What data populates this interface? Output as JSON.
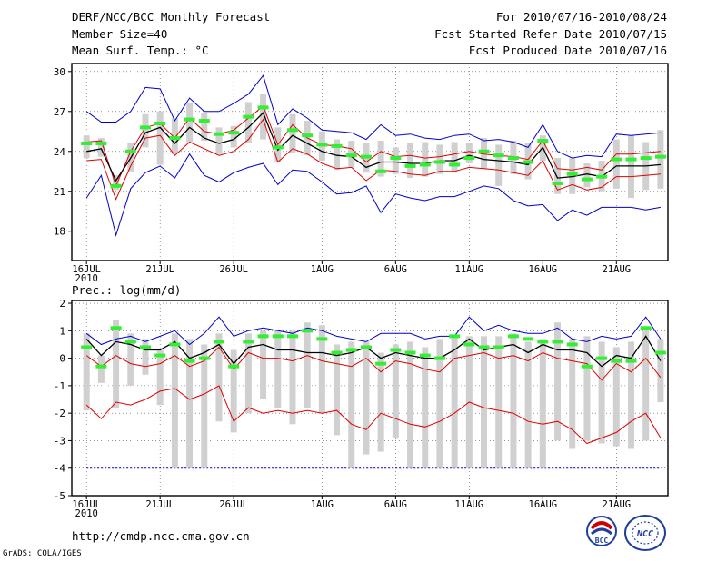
{
  "header": {
    "title": "DERF/NCC/BCC Monthly Forecast",
    "member_size": "Member Size=40",
    "variable": "Mean Surf. Temp.: °C",
    "period": "For 2010/07/16-2010/08/24",
    "started": "Fcst Started Refer Date 2010/07/15",
    "produced": "Fcst Produced Date 2010/07/16"
  },
  "footer": {
    "url": "http://cmdp.ncc.cma.gov.cn",
    "grads": "GrADS: COLA/IGES",
    "logo_bcc": "BCC",
    "logo_ncc": "NCC"
  },
  "colors": {
    "mean": "#000000",
    "inner": "#e00000",
    "outer": "#0000c8",
    "box": "#d0d0d0",
    "obs": "#33ee33"
  },
  "chart_data": [
    {
      "type": "line",
      "title": "Mean Surf. Temp.: °C",
      "x_ticks": [
        {
          "day": 0,
          "label": "16JUL",
          "sub": "2010"
        },
        {
          "day": 5,
          "label": "21JUL"
        },
        {
          "day": 10,
          "label": "26JUL"
        },
        {
          "day": 16,
          "label": "1AUG"
        },
        {
          "day": 21,
          "label": "6AUG"
        },
        {
          "day": 26,
          "label": "11AUG"
        },
        {
          "day": 31,
          "label": "16AUG"
        },
        {
          "day": 36,
          "label": "21AUG"
        }
      ],
      "xlim": [
        -1,
        39.5
      ],
      "ylim": [
        15.8,
        30.6
      ],
      "y_ticks": [
        18,
        21,
        24,
        27,
        30
      ],
      "series": [
        {
          "name": "upper-outer",
          "values": [
            27.0,
            26.2,
            26.2,
            27.0,
            28.8,
            28.7,
            26.3,
            28.0,
            27.0,
            27.0,
            27.6,
            28.3,
            29.7,
            26.0,
            27.2,
            26.5,
            25.6,
            25.5,
            25.4,
            24.9,
            26.0,
            25.2,
            25.3,
            25.0,
            24.9,
            25.2,
            25.3,
            24.8,
            24.9,
            24.7,
            24.3,
            26.0,
            24.0,
            23.5,
            23.7,
            23.6,
            25.3,
            25.2,
            25.3,
            25.4
          ]
        },
        {
          "name": "upper-inner",
          "values": [
            24.7,
            24.8,
            21.4,
            24.0,
            25.8,
            26.1,
            25.0,
            26.5,
            25.5,
            25.3,
            25.6,
            26.5,
            27.4,
            24.5,
            26.0,
            25.0,
            24.5,
            24.4,
            24.2,
            23.2,
            24.0,
            23.6,
            23.7,
            23.5,
            23.6,
            23.8,
            24.0,
            23.8,
            23.7,
            23.6,
            23.4,
            24.8,
            22.7,
            22.6,
            22.8,
            22.6,
            23.8,
            23.8,
            23.9,
            24.0
          ]
        },
        {
          "name": "mean",
          "values": [
            24.0,
            24.2,
            21.8,
            23.5,
            25.4,
            25.8,
            24.6,
            25.8,
            25.0,
            24.6,
            24.9,
            25.8,
            26.9,
            24.1,
            25.2,
            24.6,
            24.0,
            23.7,
            23.6,
            22.8,
            23.2,
            23.2,
            23.1,
            23.1,
            23.3,
            23.3,
            23.7,
            23.4,
            23.3,
            23.2,
            23.0,
            24.3,
            22.0,
            22.1,
            22.3,
            22.1,
            22.9,
            22.9,
            22.9,
            23.0
          ]
        },
        {
          "name": "lower-inner",
          "values": [
            23.3,
            23.4,
            20.4,
            22.9,
            25.0,
            25.2,
            23.7,
            24.7,
            24.2,
            23.7,
            24.0,
            24.9,
            26.4,
            23.2,
            24.2,
            23.8,
            23.1,
            22.7,
            22.8,
            21.8,
            22.6,
            22.5,
            22.3,
            22.2,
            22.5,
            22.5,
            22.8,
            22.7,
            22.6,
            22.4,
            22.2,
            23.3,
            21.1,
            21.5,
            21.1,
            21.3,
            22.1,
            22.1,
            22.2,
            22.3
          ]
        },
        {
          "name": "lower-outer",
          "values": [
            20.5,
            22.2,
            17.7,
            21.2,
            22.4,
            22.9,
            22.0,
            23.8,
            22.2,
            21.7,
            22.4,
            22.8,
            23.1,
            21.5,
            22.6,
            22.5,
            21.7,
            20.8,
            20.9,
            21.4,
            19.4,
            20.8,
            20.5,
            20.3,
            20.6,
            20.6,
            21.0,
            21.4,
            21.2,
            20.3,
            19.9,
            20.0,
            18.8,
            19.6,
            19.2,
            19.8,
            19.8,
            19.8,
            19.6,
            19.8
          ]
        }
      ],
      "boxes": [
        {
          "low": 23.5,
          "high": 25.2
        },
        {
          "low": 23.6,
          "high": 25.0
        },
        {
          "low": 21.1,
          "high": 22.2
        },
        {
          "low": 22.5,
          "high": 24.6
        },
        {
          "low": 24.3,
          "high": 26.8
        },
        {
          "low": 23.0,
          "high": 27.0
        },
        {
          "low": 23.8,
          "high": 26.5
        },
        {
          "low": 24.7,
          "high": 27.6
        },
        {
          "low": 24.8,
          "high": 26.9
        },
        {
          "low": 23.8,
          "high": 25.8
        },
        {
          "low": 24.3,
          "high": 25.9
        },
        {
          "low": 24.6,
          "high": 27.7
        },
        {
          "low": 24.9,
          "high": 28.3
        },
        {
          "low": 23.2,
          "high": 25.8
        },
        {
          "low": 23.9,
          "high": 26.8
        },
        {
          "low": 23.7,
          "high": 26.3
        },
        {
          "low": 23.3,
          "high": 25.5
        },
        {
          "low": 22.6,
          "high": 24.9
        },
        {
          "low": 22.8,
          "high": 24.8
        },
        {
          "low": 22.4,
          "high": 24.6
        },
        {
          "low": 22.1,
          "high": 24.8
        },
        {
          "low": 22.3,
          "high": 24.3
        },
        {
          "low": 22.0,
          "high": 24.6
        },
        {
          "low": 22.1,
          "high": 24.7
        },
        {
          "low": 22.3,
          "high": 24.5
        },
        {
          "low": 22.4,
          "high": 24.7
        },
        {
          "low": 23.1,
          "high": 24.6
        },
        {
          "low": 22.7,
          "high": 25.0
        },
        {
          "low": 21.4,
          "high": 24.5
        },
        {
          "low": 22.3,
          "high": 24.8
        },
        {
          "low": 21.9,
          "high": 24.6
        },
        {
          "low": 23.3,
          "high": 25.2
        },
        {
          "low": 20.8,
          "high": 23.5
        },
        {
          "low": 20.8,
          "high": 23.5
        },
        {
          "low": 21.3,
          "high": 23.1
        },
        {
          "low": 21.0,
          "high": 23.3
        },
        {
          "low": 21.2,
          "high": 24.9
        },
        {
          "low": 20.5,
          "high": 25.2
        },
        {
          "low": 21.1,
          "high": 24.7
        },
        {
          "low": 21.2,
          "high": 25.6
        }
      ],
      "observed": [
        24.6,
        24.6,
        21.4,
        24.0,
        25.8,
        26.1,
        25.0,
        26.4,
        26.3,
        25.3,
        25.4,
        26.6,
        27.3,
        24.3,
        25.6,
        25.2,
        24.5,
        24.4,
        23.7,
        23.6,
        22.5,
        23.5,
        22.9,
        23.0,
        23.2,
        23.0,
        23.5,
        24.0,
        23.7,
        23.5,
        23.2,
        24.8,
        21.6,
        22.3,
        21.9,
        22.1,
        23.4,
        23.4,
        23.5,
        23.6
      ]
    },
    {
      "type": "line",
      "title": "Prec.: log(mm/d)",
      "x_ticks": [
        {
          "day": 0,
          "label": "16JUL",
          "sub": "2010"
        },
        {
          "day": 5,
          "label": "21JUL"
        },
        {
          "day": 10,
          "label": "26JUL"
        },
        {
          "day": 16,
          "label": "1AUG"
        },
        {
          "day": 21,
          "label": "6AUG"
        },
        {
          "day": 26,
          "label": "11AUG"
        },
        {
          "day": 31,
          "label": "16AUG"
        },
        {
          "day": 36,
          "label": "21AUG"
        }
      ],
      "xlim": [
        -1,
        39.5
      ],
      "ylim": [
        -5,
        2.1
      ],
      "y_ticks": [
        -5,
        -4,
        -3,
        -2,
        -1,
        0,
        1,
        2
      ],
      "reference_line": -4,
      "series": [
        {
          "name": "upper-outer",
          "values": [
            0.9,
            0.5,
            0.7,
            0.8,
            0.6,
            0.8,
            1.0,
            0.5,
            0.9,
            1.5,
            0.8,
            1.0,
            1.1,
            1.0,
            0.9,
            1.1,
            1.0,
            0.8,
            0.7,
            0.6,
            0.9,
            0.9,
            0.9,
            0.7,
            0.8,
            0.8,
            1.5,
            1.0,
            1.2,
            1.0,
            0.9,
            0.9,
            1.1,
            0.7,
            0.6,
            0.8,
            0.7,
            0.8,
            1.5,
            0.7
          ]
        },
        {
          "name": "upper-inner",
          "values": [
            0.1,
            -0.3,
            0.1,
            -0.2,
            -0.3,
            -0.2,
            0.1,
            -0.3,
            -0.1,
            0.4,
            -0.4,
            0.2,
            0.0,
            0.0,
            -0.1,
            0.1,
            -0.1,
            -0.2,
            -0.3,
            0.0,
            -0.5,
            -0.1,
            -0.2,
            -0.4,
            -0.5,
            0.0,
            0.1,
            0.2,
            0.0,
            0.1,
            -0.1,
            0.2,
            0.0,
            -0.1,
            -0.2,
            -0.8,
            -0.2,
            -0.5,
            0.0,
            -0.7
          ]
        },
        {
          "name": "mean",
          "values": [
            0.7,
            0.1,
            0.6,
            0.5,
            0.3,
            0.3,
            0.6,
            0.0,
            0.2,
            0.5,
            -0.2,
            0.4,
            0.5,
            0.3,
            0.3,
            0.2,
            0.2,
            0.1,
            0.2,
            0.4,
            0.0,
            0.2,
            0.1,
            0.0,
            0.0,
            0.3,
            0.7,
            0.3,
            0.4,
            0.5,
            0.2,
            0.5,
            0.3,
            0.3,
            0.2,
            -0.3,
            0.1,
            0.0,
            0.8,
            -0.1
          ]
        },
        {
          "name": "lower-inner",
          "values": [
            -1.7,
            -2.2,
            -1.6,
            -1.7,
            -1.5,
            -1.2,
            -1.1,
            -1.5,
            -1.3,
            -1.0,
            -2.3,
            -1.8,
            -2.0,
            -1.9,
            -2.0,
            -1.9,
            -2.0,
            -1.9,
            -2.4,
            -2.6,
            -2.0,
            -2.2,
            -2.4,
            -2.5,
            -2.3,
            -2.0,
            -1.6,
            -1.8,
            -1.9,
            -2.0,
            -2.3,
            -2.4,
            -2.3,
            -2.6,
            -3.1,
            -2.9,
            -2.7,
            -2.3,
            -2.0,
            -2.9
          ]
        },
        {
          "name": "lower-outer",
          "values": [
            -4.0,
            -4.0,
            -4.0,
            -4.0,
            -4.0,
            -4.0,
            -4.0,
            -4.0,
            -4.0,
            -4.0,
            -4.0,
            -4.0,
            -4.0,
            -4.0,
            -4.0,
            -4.0,
            -4.0,
            -4.0,
            -4.0,
            -4.0,
            -4.0,
            -4.0,
            -4.0,
            -4.0,
            -4.0,
            -4.0,
            -4.0,
            -4.0,
            -4.0,
            -4.0,
            -4.0,
            -4.0,
            -4.0,
            -4.0,
            -4.0,
            -4.0,
            -4.0,
            -4.0,
            -4.0,
            -4.0
          ]
        }
      ],
      "boxes": [
        {
          "low": -1.9,
          "high": 0.9
        },
        {
          "low": -0.9,
          "high": 0.1
        },
        {
          "low": -1.8,
          "high": 1.4
        },
        {
          "low": -1.0,
          "high": 0.9
        },
        {
          "low": -0.6,
          "high": 0.7
        },
        {
          "low": -1.7,
          "high": 0.3
        },
        {
          "low": -4.0,
          "high": 0.9
        },
        {
          "low": -4.0,
          "high": 0.7
        },
        {
          "low": -4.0,
          "high": 0.5
        },
        {
          "low": -2.3,
          "high": 0.9
        },
        {
          "low": -2.7,
          "high": 0.3
        },
        {
          "low": -2.0,
          "high": 0.9
        },
        {
          "low": -1.5,
          "high": 1.0
        },
        {
          "low": -1.8,
          "high": 1.0
        },
        {
          "low": -2.4,
          "high": 1.0
        },
        {
          "low": -1.8,
          "high": 1.3
        },
        {
          "low": -2.0,
          "high": 1.2
        },
        {
          "low": -2.8,
          "high": 0.5
        },
        {
          "low": -4.0,
          "high": 0.6
        },
        {
          "low": -3.5,
          "high": 0.6
        },
        {
          "low": -3.4,
          "high": 0.2
        },
        {
          "low": -2.9,
          "high": 0.5
        },
        {
          "low": -4.0,
          "high": 0.6
        },
        {
          "low": -4.0,
          "high": 0.4
        },
        {
          "low": -4.0,
          "high": 0.7
        },
        {
          "low": -4.0,
          "high": 0.8
        },
        {
          "low": -4.0,
          "high": 0.8
        },
        {
          "low": -4.0,
          "high": 0.8
        },
        {
          "low": -4.0,
          "high": 0.8
        },
        {
          "low": -4.0,
          "high": 0.9
        },
        {
          "low": -4.0,
          "high": 0.6
        },
        {
          "low": -4.0,
          "high": 0.7
        },
        {
          "low": -3.0,
          "high": 1.3
        },
        {
          "low": -3.3,
          "high": 0.7
        },
        {
          "low": -3.0,
          "high": 0.8
        },
        {
          "low": -3.1,
          "high": 0.6
        },
        {
          "low": -3.2,
          "high": 0.4
        },
        {
          "low": -3.3,
          "high": 0.6
        },
        {
          "low": -3.0,
          "high": 1.0
        },
        {
          "low": -1.6,
          "high": 0.7
        }
      ],
      "observed": [
        0.4,
        -0.3,
        1.1,
        0.6,
        0.4,
        0.1,
        0.5,
        -0.1,
        0.0,
        0.6,
        -0.3,
        0.6,
        0.8,
        0.8,
        0.8,
        1.0,
        0.7,
        0.2,
        0.3,
        0.4,
        -0.2,
        0.3,
        0.2,
        0.1,
        0.0,
        0.8,
        0.5,
        0.4,
        0.4,
        0.8,
        0.7,
        0.6,
        0.6,
        0.5,
        -0.3,
        0.0,
        -0.1,
        -0.1,
        1.1,
        0.2
      ]
    }
  ]
}
